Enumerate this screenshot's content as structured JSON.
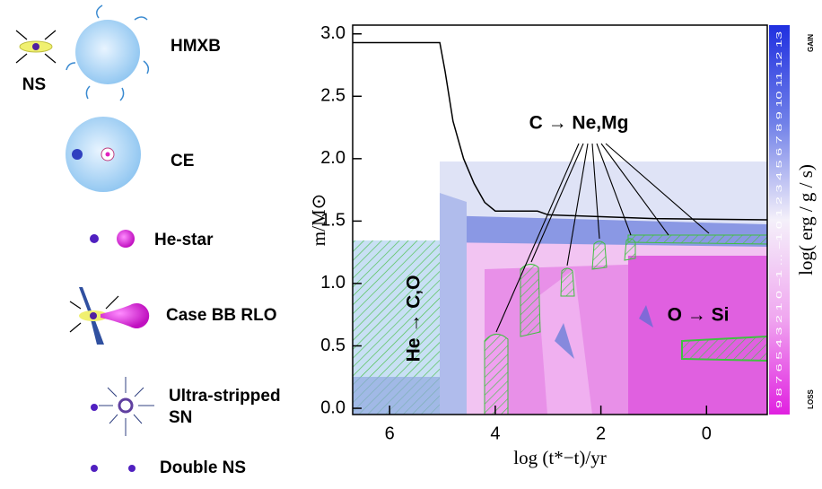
{
  "chart_data": {
    "type": "line",
    "xlabel": "log (t*−t)/yr",
    "ylabel": "m/M⊙",
    "xlim": [
      6.7,
      -1.15
    ],
    "ylim": [
      -0.05,
      3.07
    ],
    "xticks": [
      6,
      4,
      2,
      0
    ],
    "yticks": [
      {
        "value": 0,
        "label": "0.0"
      },
      0.5,
      {
        "value": 1,
        "label": "1.0"
      },
      1.5,
      {
        "value": 2,
        "label": "2.0"
      },
      2.5,
      {
        "value": 3,
        "label": "3.0"
      }
    ],
    "series": [
      {
        "color": "#000000",
        "x": [
          6.7,
          5.05,
          4.95,
          4.8,
          4.6,
          4.4,
          4.2,
          4.0,
          3.2,
          3.0,
          1.0,
          -1.15
        ],
        "values": [
          2.93,
          2.93,
          2.7,
          2.3,
          2.0,
          1.8,
          1.65,
          1.58,
          1.58,
          1.55,
          1.52,
          1.51
        ]
      }
    ],
    "annotations": [
      "C → Ne,Mg",
      "He → C,O",
      "O → Si"
    ],
    "colorbar": {
      "label": "log( erg / g / s)",
      "gain": "GAIN",
      "loss": "LOSS",
      "ticks": "9 8 7 6 5 4 3 2 1 0 −1 ... −1 0 1 2 3 4 5 6 7 8 9 10 11 12 13"
    }
  },
  "stages": {
    "ns": "NS",
    "labels": [
      "HMXB",
      "CE",
      "He-star",
      "Case BB RLO",
      "Ultra-stripped",
      "SN",
      "Double NS"
    ]
  }
}
